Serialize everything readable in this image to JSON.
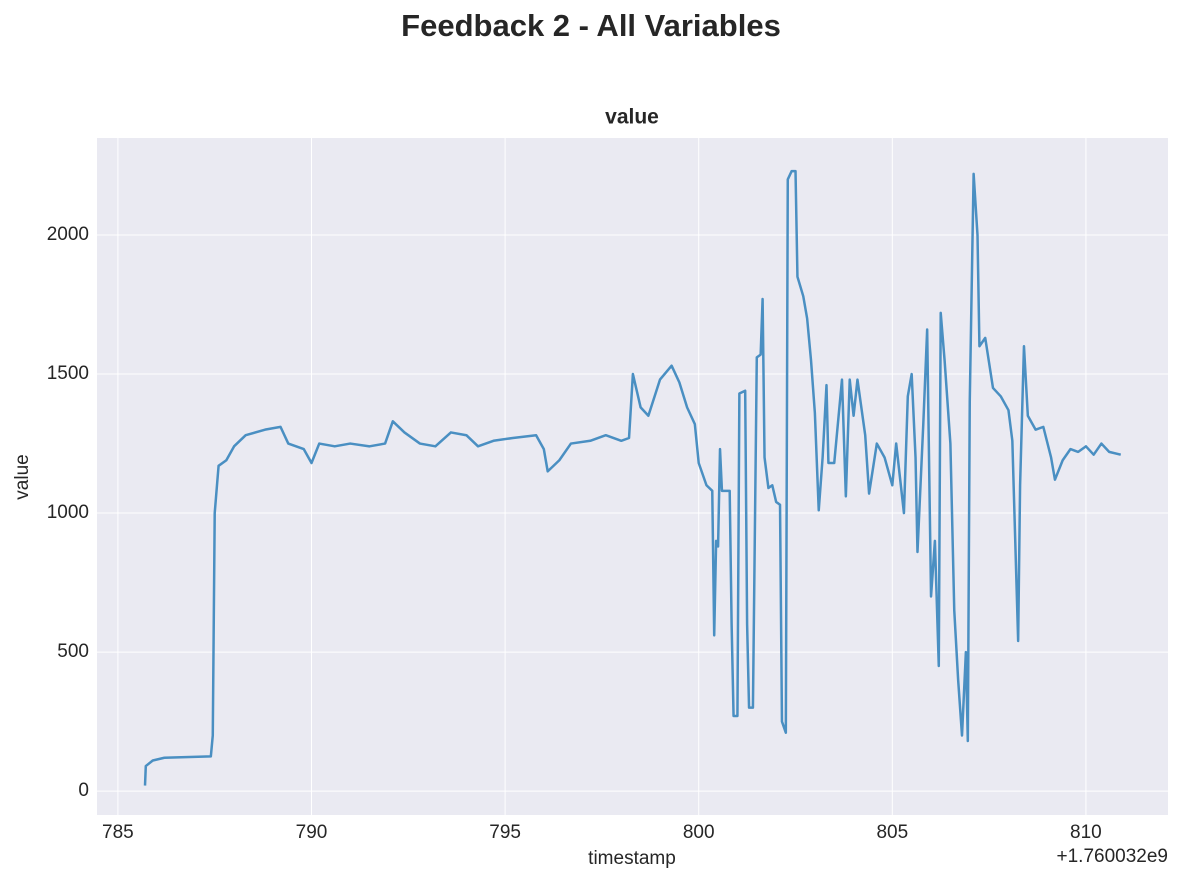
{
  "chart_data": {
    "type": "line",
    "suptitle": "Feedback 2 - All Variables",
    "title": "value",
    "xlabel": "timestamp",
    "ylabel": "value",
    "x_offset_label": "+1.760032e9",
    "grid": true,
    "xlim": [
      784.46,
      812.12
    ],
    "ylim": [
      -86,
      2349
    ],
    "xticks": [
      785,
      790,
      795,
      800,
      805,
      810
    ],
    "yticks": [
      0,
      500,
      1000,
      1500,
      2000
    ],
    "x": [
      785.7,
      785.72,
      785.9,
      786.2,
      787.4,
      787.45,
      787.5,
      787.6,
      787.8,
      788.0,
      788.3,
      788.8,
      789.2,
      789.4,
      789.8,
      790.0,
      790.2,
      790.6,
      791.0,
      791.5,
      791.9,
      792.1,
      792.4,
      792.8,
      793.2,
      793.6,
      794.0,
      794.3,
      794.7,
      795.2,
      795.8,
      796.0,
      796.1,
      796.4,
      796.7,
      797.2,
      797.6,
      798.0,
      798.2,
      798.3,
      798.5,
      798.7,
      799.0,
      799.3,
      799.5,
      799.7,
      799.9,
      800.0,
      800.2,
      800.35,
      800.4,
      800.45,
      800.5,
      800.55,
      800.6,
      800.8,
      800.85,
      800.9,
      801.0,
      801.05,
      801.2,
      801.25,
      801.3,
      801.4,
      801.5,
      801.6,
      801.65,
      801.7,
      801.8,
      801.9,
      802.0,
      802.1,
      802.15,
      802.25,
      802.3,
      802.4,
      802.5,
      802.55,
      802.7,
      802.8,
      802.9,
      803.0,
      803.1,
      803.2,
      803.3,
      803.35,
      803.5,
      803.7,
      803.8,
      803.9,
      804.0,
      804.1,
      804.3,
      804.4,
      804.6,
      804.8,
      805.0,
      805.1,
      805.3,
      805.4,
      805.5,
      805.6,
      805.65,
      805.8,
      805.9,
      806.0,
      806.1,
      806.2,
      806.25,
      806.35,
      806.5,
      806.6,
      806.7,
      806.8,
      806.9,
      806.95,
      807.0,
      807.1,
      807.2,
      807.25,
      807.4,
      807.6,
      807.8,
      808.0,
      808.1,
      808.25,
      808.3,
      808.4,
      808.5,
      808.7,
      808.9,
      809.1,
      809.2,
      809.4,
      809.6,
      809.8,
      810.0,
      810.2,
      810.4,
      810.6,
      810.9
    ],
    "series": [
      {
        "name": "value",
        "color": "#4a8fc2",
        "values": [
          20,
          90,
          110,
          120,
          125,
          200,
          1000,
          1170,
          1190,
          1240,
          1280,
          1300,
          1310,
          1250,
          1230,
          1180,
          1250,
          1240,
          1250,
          1240,
          1250,
          1330,
          1290,
          1250,
          1240,
          1290,
          1280,
          1240,
          1260,
          1270,
          1280,
          1230,
          1150,
          1190,
          1250,
          1260,
          1280,
          1260,
          1270,
          1500,
          1380,
          1350,
          1480,
          1530,
          1470,
          1380,
          1320,
          1180,
          1100,
          1080,
          560,
          900,
          880,
          1230,
          1080,
          1080,
          600,
          270,
          270,
          1430,
          1440,
          600,
          300,
          300,
          1560,
          1570,
          1770,
          1200,
          1090,
          1100,
          1040,
          1030,
          250,
          210,
          2200,
          2230,
          2230,
          1850,
          1780,
          1700,
          1550,
          1360,
          1010,
          1200,
          1460,
          1180,
          1180,
          1480,
          1060,
          1480,
          1350,
          1480,
          1280,
          1070,
          1250,
          1200,
          1100,
          1250,
          1000,
          1420,
          1500,
          1200,
          860,
          1320,
          1660,
          700,
          900,
          450,
          1720,
          1550,
          1250,
          650,
          400,
          200,
          500,
          180,
          1400,
          2220,
          2000,
          1600,
          1630,
          1450,
          1420,
          1370,
          1260,
          540,
          1100,
          1600,
          1350,
          1300,
          1310,
          1200,
          1120,
          1190,
          1230,
          1220,
          1240,
          1210,
          1250,
          1220,
          1210
        ]
      }
    ]
  }
}
